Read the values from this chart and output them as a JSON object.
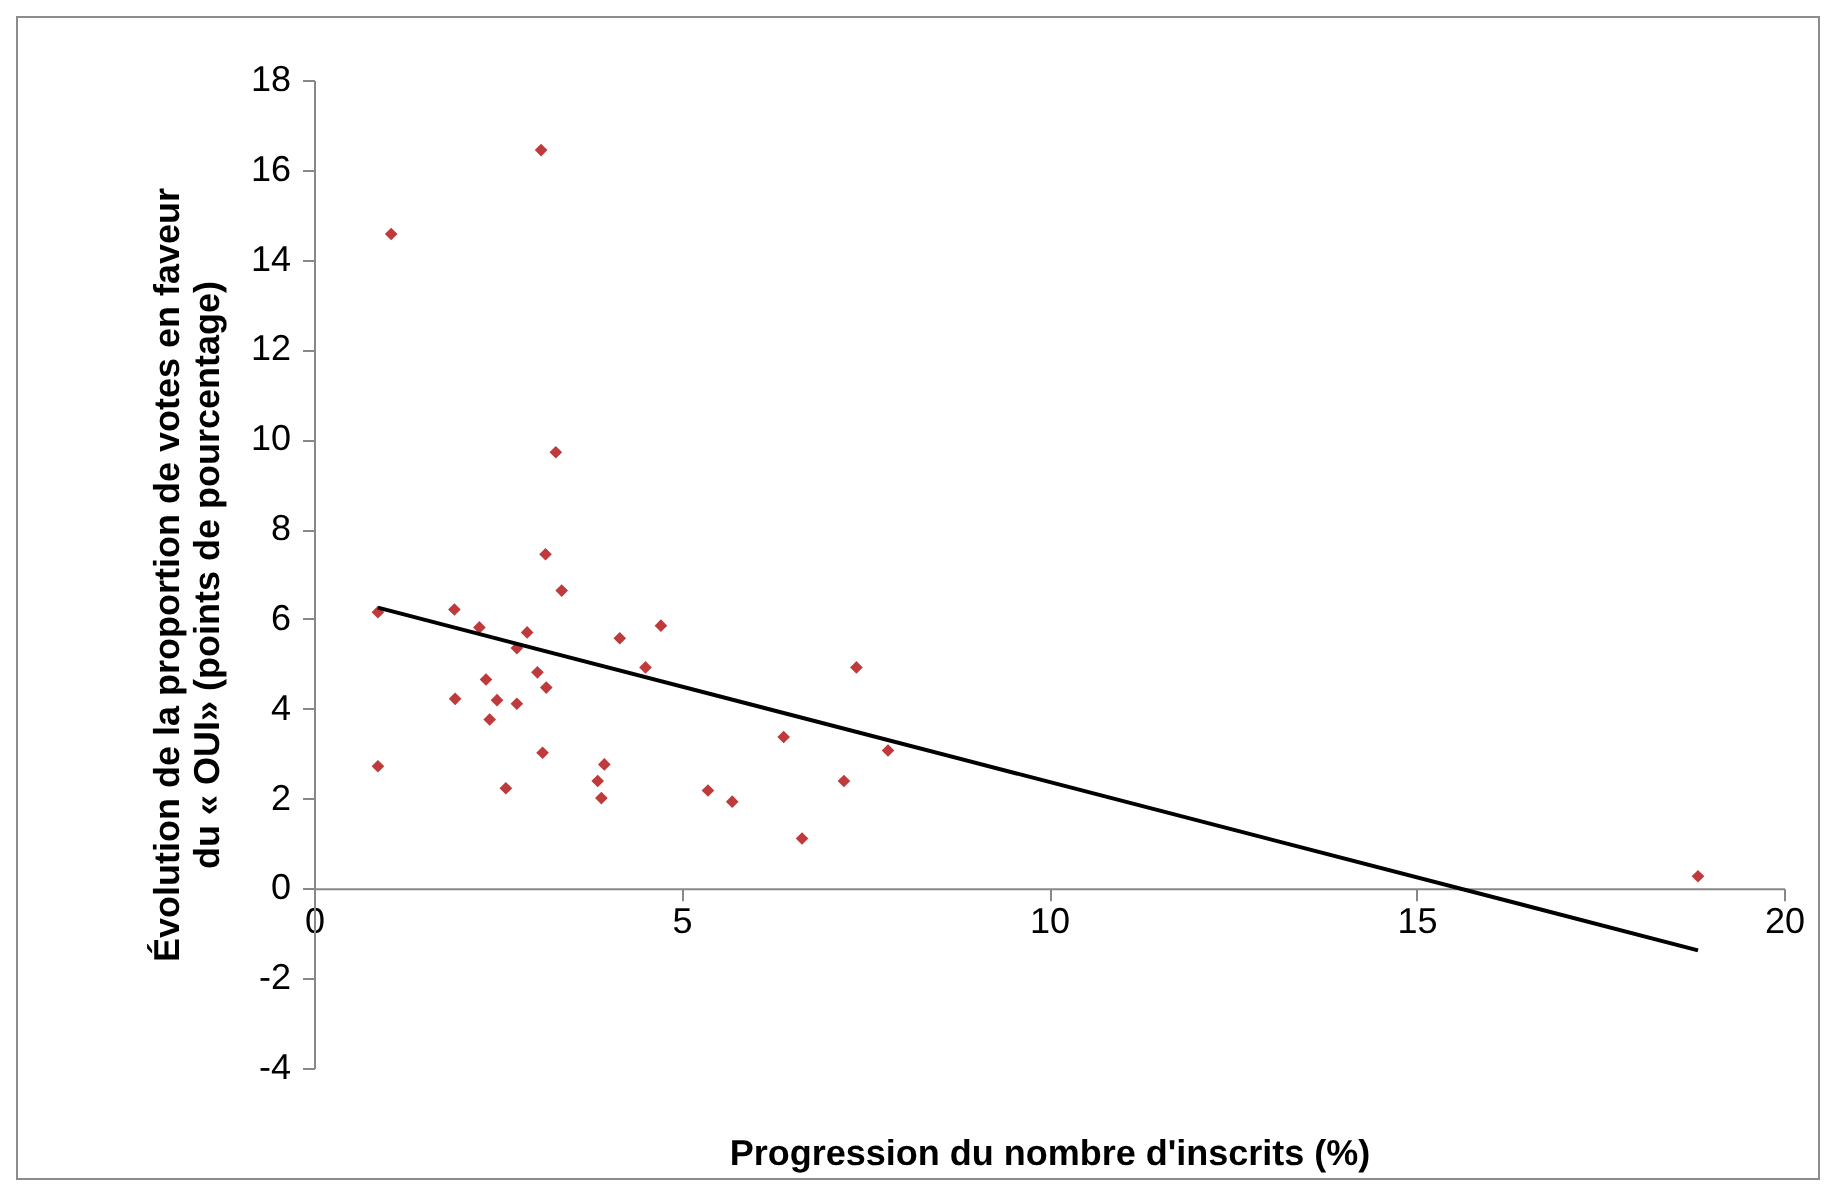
{
  "chart_data": {
    "type": "scatter",
    "xlabel": "Progression du nombre d'inscrits (%)",
    "ylabel": "Évolution de la proportion de votes en faveur\ndu « OUI» (points de pourcentage)",
    "xlim": [
      0,
      20
    ],
    "xticks": [
      0,
      5,
      10,
      15,
      20
    ],
    "ylim": [
      -4,
      18
    ],
    "yticks": [
      -4,
      -2,
      0,
      2,
      4,
      6,
      8,
      10,
      12,
      14,
      16,
      18
    ],
    "grid": false,
    "marker": "diamond",
    "series": [
      {
        "color": "#c0393b",
        "x": [
          3.09,
          1.05,
          3.29,
          3.15,
          3.37,
          0.87,
          0.87,
          1.91,
          1.92,
          2.25,
          2.34,
          2.39,
          2.49,
          2.61,
          2.76,
          2.76,
          2.9,
          3.04,
          3.16,
          3.11,
          3.86,
          3.91,
          3.95,
          4.16,
          4.51,
          4.72,
          5.36,
          5.69,
          6.64,
          6.39,
          7.21,
          7.38,
          7.81,
          18.83
        ],
        "values": [
          16.44,
          14.57,
          9.71,
          7.44,
          6.63,
          6.15,
          2.72,
          6.21,
          4.22,
          5.81,
          4.65,
          3.76,
          4.19,
          2.23,
          5.35,
          4.11,
          5.7,
          4.81,
          4.47,
          3.02,
          2.39,
          2.01,
          2.76,
          5.57,
          4.92,
          5.85,
          2.18,
          1.93,
          1.11,
          3.37,
          2.39,
          4.92,
          3.07,
          0.27
        ]
      },
      {
        "type": "line",
        "color": "#000000",
        "x": [
          0.87,
          18.83
        ],
        "values": [
          6.25,
          -1.38
        ],
        "line_style": "solid",
        "marker": "none"
      }
    ]
  }
}
